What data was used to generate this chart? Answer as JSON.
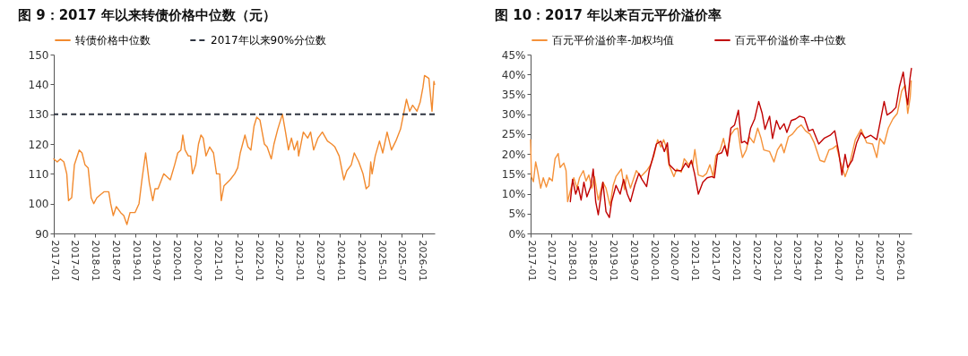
{
  "chart_data": [
    {
      "type": "line",
      "title": "图 9：2017 年以来转债价格中位数（元）",
      "legend": "top",
      "grid": false,
      "line_style": "solid",
      "marker": "none",
      "xlim": [
        "2017-01-01",
        "2026-04-25"
      ],
      "xticks": [
        "2017-01",
        "2017-07",
        "2018-01",
        "2018-07",
        "2019-01",
        "2019-07",
        "2020-01",
        "2020-07",
        "2021-01",
        "2021-07",
        "2022-01",
        "2022-07",
        "2023-01",
        "2023-07",
        "2024-01",
        "2024-07",
        "2025-01",
        "2025-07",
        "2026-01"
      ],
      "ylim": [
        90,
        150
      ],
      "yticks": [
        90,
        100,
        110,
        120,
        130,
        140,
        150
      ],
      "ref_lines": [
        {
          "axis": "y",
          "value": 130,
          "label": "2017年以来90%分位数",
          "color": "#2e3440",
          "line_style": "dashed"
        }
      ],
      "series": [
        {
          "name": "转债价格中位数",
          "color": "#f28a2e",
          "x": [
            "2017-01-01",
            "2017-02-01",
            "2017-03-01",
            "2017-04-01",
            "2017-04-27",
            "2017-05-13",
            "2017-06-10",
            "2017-07-04",
            "2017-08-16",
            "2017-09-10",
            "2017-10-07",
            "2017-11-04",
            "2017-12-01",
            "2017-12-24",
            "2018-01-21",
            "2018-03-27",
            "2018-05-07",
            "2018-05-24",
            "2018-06-16",
            "2018-07-13",
            "2018-08-21",
            "2018-09-18",
            "2018-10-16",
            "2018-11-13",
            "2018-12-27",
            "2019-02-01",
            "2019-02-27",
            "2019-04-01",
            "2019-05-04",
            "2019-06-04",
            "2019-06-24",
            "2019-07-21",
            "2019-09-10",
            "2019-11-07",
            "2019-12-16",
            "2020-01-13",
            "2020-02-10",
            "2020-02-27",
            "2020-03-18",
            "2020-04-16",
            "2020-05-07",
            "2020-05-24",
            "2020-06-21",
            "2020-07-16",
            "2020-08-07",
            "2020-08-27",
            "2020-09-21",
            "2020-10-24",
            "2020-11-27",
            "2020-12-24",
            "2021-01-21",
            "2021-02-04",
            "2021-03-01",
            "2021-04-24",
            "2021-06-04",
            "2021-07-01",
            "2021-07-24",
            "2021-09-04",
            "2021-10-01",
            "2021-10-27",
            "2021-11-24",
            "2021-12-18",
            "2022-01-16",
            "2022-02-24",
            "2022-03-21",
            "2022-04-27",
            "2022-05-21",
            "2022-06-24",
            "2022-08-04",
            "2022-09-01",
            "2022-09-27",
            "2022-10-24",
            "2022-11-18",
            "2022-12-16",
            "2022-12-27",
            "2023-02-07",
            "2023-03-18",
            "2023-04-13",
            "2023-05-10",
            "2023-06-18",
            "2023-07-27",
            "2023-09-10",
            "2023-10-18",
            "2023-11-16",
            "2023-12-24",
            "2024-02-04",
            "2024-03-01",
            "2024-04-10",
            "2024-05-07",
            "2024-06-16",
            "2024-07-24",
            "2024-08-21",
            "2024-09-16",
            "2024-10-01",
            "2024-10-13",
            "2024-11-10",
            "2024-12-18",
            "2025-01-16",
            "2025-02-24",
            "2025-04-04",
            "2025-05-13",
            "2025-06-24",
            "2025-08-16",
            "2025-09-13",
            "2025-10-10",
            "2025-11-18",
            "2025-12-16",
            "2026-01-10",
            "2026-01-24",
            "2026-03-04",
            "2026-04-01",
            "2026-04-18",
            "2026-04-24"
          ],
          "values": [
            115,
            114,
            115,
            114,
            110,
            101,
            102,
            113,
            118,
            117,
            113,
            112,
            102,
            100,
            102,
            104,
            104,
            100,
            96,
            99,
            97,
            96,
            93,
            97,
            97,
            100,
            108,
            117,
            107,
            101,
            105,
            105,
            110,
            108,
            113,
            117,
            118,
            123,
            118,
            116,
            116,
            110,
            113,
            120,
            123,
            122,
            116,
            119,
            117,
            110,
            110,
            101,
            106,
            108,
            110,
            112,
            117,
            123,
            119,
            118,
            126,
            129,
            128,
            120,
            119,
            115,
            120,
            125,
            130,
            124,
            118,
            122,
            118,
            121,
            116,
            124,
            122,
            124,
            118,
            122,
            124,
            121,
            120,
            119,
            116,
            108,
            111,
            113,
            117,
            114,
            110,
            105,
            106,
            114,
            110,
            116,
            121,
            117,
            124,
            118,
            121,
            125,
            135,
            131,
            133,
            131,
            134,
            139,
            143,
            142,
            131,
            141,
            140
          ]
        }
      ]
    },
    {
      "type": "line",
      "title": "图 10：2017 年以来百元平价溢价率",
      "legend": "top",
      "grid": false,
      "line_style": "solid",
      "marker": "none",
      "xlim": [
        "2017-01-01",
        "2026-04-19"
      ],
      "xticks": [
        "2017-01",
        "2017-07",
        "2018-01",
        "2018-07",
        "2019-01",
        "2019-07",
        "2020-01",
        "2020-07",
        "2021-01",
        "2021-07",
        "2022-01",
        "2022-07",
        "2023-01",
        "2023-07",
        "2024-01",
        "2024-07",
        "2025-01",
        "2025-07",
        "2026-01"
      ],
      "ylim": [
        0,
        45
      ],
      "yticks": [
        {
          "value": 0,
          "label": "0%"
        },
        {
          "value": 5,
          "label": "5%"
        },
        {
          "value": 10,
          "label": "10%"
        },
        {
          "value": 15,
          "label": "15%"
        },
        {
          "value": 20,
          "label": "20%"
        },
        {
          "value": 25,
          "label": "25%"
        },
        {
          "value": 30,
          "label": "30%"
        },
        {
          "value": 35,
          "label": "35%"
        },
        {
          "value": 40,
          "label": "40%"
        },
        {
          "value": 45,
          "label": "45%"
        }
      ],
      "series": [
        {
          "name": "百元平价溢价率-加权均值",
          "color": "#f5923a",
          "x": [
            "2017-01-01",
            "2017-01-08",
            "2017-01-26",
            "2017-02-15",
            "2017-03-04",
            "2017-04-01",
            "2017-04-24",
            "2017-05-21",
            "2017-06-16",
            "2017-07-13",
            "2017-08-07",
            "2017-09-04",
            "2017-09-21",
            "2017-10-24",
            "2017-11-13",
            "2017-11-27",
            "2017-12-27",
            "2018-01-21",
            "2018-02-18",
            "2018-03-13",
            "2018-04-16",
            "2018-05-10",
            "2018-06-04",
            "2018-07-01",
            "2018-07-24",
            "2018-08-27",
            "2018-10-07",
            "2018-11-04",
            "2018-12-10",
            "2019-01-07",
            "2019-02-01",
            "2019-03-21",
            "2019-04-18",
            "2019-05-07",
            "2019-06-10",
            "2019-08-01",
            "2019-09-10",
            "2019-11-01",
            "2019-12-07",
            "2020-01-04",
            "2020-02-07",
            "2020-03-07",
            "2020-04-01",
            "2020-04-27",
            "2020-05-18",
            "2020-07-01",
            "2020-07-27",
            "2020-09-04",
            "2020-10-01",
            "2020-11-10",
            "2020-11-27",
            "2020-12-16",
            "2021-01-04",
            "2021-02-04",
            "2021-03-16",
            "2021-04-18",
            "2021-05-18",
            "2021-06-16",
            "2021-07-10",
            "2021-08-18",
            "2021-09-16",
            "2021-10-18",
            "2021-11-18",
            "2021-12-24",
            "2022-01-21",
            "2022-02-15",
            "2022-03-04",
            "2022-04-07",
            "2022-05-04",
            "2022-06-13",
            "2022-07-18",
            "2022-08-16",
            "2022-09-10",
            "2022-11-01",
            "2022-12-10",
            "2023-01-10",
            "2023-02-13",
            "2023-03-10",
            "2023-04-18",
            "2023-05-24",
            "2023-07-04",
            "2023-08-10",
            "2023-09-18",
            "2023-10-27",
            "2023-12-04",
            "2024-01-24",
            "2024-03-04",
            "2024-04-13",
            "2024-05-18",
            "2024-06-18",
            "2024-07-24",
            "2024-09-04",
            "2024-10-13",
            "2024-12-04",
            "2025-01-24",
            "2025-03-16",
            "2025-05-07",
            "2025-06-13",
            "2025-07-10",
            "2025-08-18",
            "2025-09-24",
            "2025-11-04",
            "2025-12-13",
            "2026-01-21",
            "2026-02-21",
            "2026-03-16",
            "2026-04-07",
            "2026-04-16"
          ],
          "values": [
            23.6,
            14.3,
            13,
            18,
            15.8,
            11.4,
            14,
            11.7,
            14,
            13.2,
            18.8,
            20.1,
            16.6,
            17.7,
            15.8,
            8,
            11.4,
            14,
            11.4,
            14,
            15.8,
            13.2,
            14.7,
            11.4,
            14.3,
            8.4,
            12.9,
            11.4,
            7,
            12.1,
            14.3,
            16.2,
            11,
            14.7,
            11.4,
            15.8,
            14.3,
            15.8,
            17.3,
            19.5,
            23.6,
            21.7,
            23.6,
            21.4,
            17.3,
            14.3,
            16.2,
            15.4,
            18.8,
            17.3,
            18,
            17.3,
            21.1,
            14.7,
            14.3,
            15.1,
            17.3,
            14.3,
            19.5,
            21,
            23.9,
            19.9,
            24.7,
            26.2,
            26.5,
            21.4,
            19.1,
            21,
            24.3,
            22.8,
            26.5,
            24,
            21,
            20.6,
            18,
            21,
            22.5,
            20.3,
            24.3,
            25,
            26.5,
            27.3,
            25.8,
            25,
            22.8,
            18.4,
            18,
            21,
            21.4,
            22.1,
            18,
            14.3,
            17.3,
            23.6,
            26.2,
            22.8,
            22.5,
            19.1,
            23.9,
            22.5,
            26.5,
            28.8,
            30.2,
            35.8,
            37.3,
            30.2,
            34.3,
            38.4
          ]
        },
        {
          "name": "百元平价溢价率-中位数",
          "color": "#c00000",
          "x": [
            "2017-12-21",
            "2018-01-10",
            "2018-02-07",
            "2018-03-01",
            "2018-03-27",
            "2018-04-21",
            "2018-05-18",
            "2018-06-21",
            "2018-07-13",
            "2018-08-04",
            "2018-08-27",
            "2018-10-07",
            "2018-11-04",
            "2018-12-04",
            "2018-12-24",
            "2019-02-01",
            "2019-03-10",
            "2019-04-10",
            "2019-05-13",
            "2019-06-10",
            "2019-07-18",
            "2019-08-24",
            "2019-09-21",
            "2019-11-01",
            "2019-11-24",
            "2019-12-24",
            "2020-01-27",
            "2020-03-07",
            "2020-04-07",
            "2020-05-04",
            "2020-05-21",
            "2020-07-13",
            "2020-09-04",
            "2020-10-13",
            "2020-11-10",
            "2020-12-04",
            "2021-01-01",
            "2021-02-04",
            "2021-03-16",
            "2021-04-24",
            "2021-06-04",
            "2021-06-27",
            "2021-07-24",
            "2021-09-01",
            "2021-09-27",
            "2021-10-21",
            "2021-11-21",
            "2021-12-24",
            "2022-01-27",
            "2022-02-24",
            "2022-03-24",
            "2022-04-18",
            "2022-05-16",
            "2022-06-21",
            "2022-07-27",
            "2022-08-27",
            "2022-09-21",
            "2022-11-01",
            "2022-11-27",
            "2023-01-01",
            "2023-02-01",
            "2023-03-10",
            "2023-04-04",
            "2023-05-13",
            "2023-06-21",
            "2023-07-27",
            "2023-09-07",
            "2023-10-16",
            "2023-11-21",
            "2024-01-13",
            "2024-03-04",
            "2024-04-24",
            "2024-06-04",
            "2024-07-10",
            "2024-08-07",
            "2024-09-04",
            "2024-09-27",
            "2024-11-07",
            "2024-12-16",
            "2025-01-24",
            "2025-03-01",
            "2025-04-21",
            "2025-06-13",
            "2025-07-21",
            "2025-08-18",
            "2025-09-13",
            "2025-10-21",
            "2025-12-01",
            "2026-01-01",
            "2026-02-04",
            "2026-03-01",
            "2026-03-16",
            "2026-04-04",
            "2026-04-18"
          ],
          "values": [
            8,
            13.6,
            9.9,
            11.8,
            8.4,
            12.9,
            9.2,
            11.8,
            16.2,
            8,
            4.7,
            12.9,
            5.5,
            4,
            8,
            12.1,
            9.9,
            13.6,
            9.9,
            8,
            12.1,
            15.1,
            13.6,
            11.8,
            15.8,
            18.8,
            22.5,
            23.2,
            20.6,
            22.8,
            17.3,
            15.8,
            15.8,
            17.7,
            16.6,
            18.4,
            15.1,
            9.9,
            12.9,
            14,
            14.3,
            14,
            19.9,
            20.3,
            22.1,
            19.5,
            26.5,
            27.3,
            31,
            22.8,
            23.2,
            22.5,
            26.5,
            28.8,
            33.2,
            30.2,
            26.2,
            29.5,
            23.9,
            28.4,
            26.2,
            27.6,
            25.4,
            28.4,
            28.8,
            29.5,
            29.1,
            25.8,
            26.2,
            22.5,
            24,
            24.7,
            25.8,
            20.3,
            14.7,
            19.9,
            16.6,
            18.4,
            22.8,
            25.4,
            24,
            24.7,
            23.6,
            29.1,
            33.2,
            29.8,
            30.5,
            31.7,
            36.9,
            40.6,
            35,
            32.4,
            38.7,
            41.5
          ]
        }
      ]
    }
  ]
}
